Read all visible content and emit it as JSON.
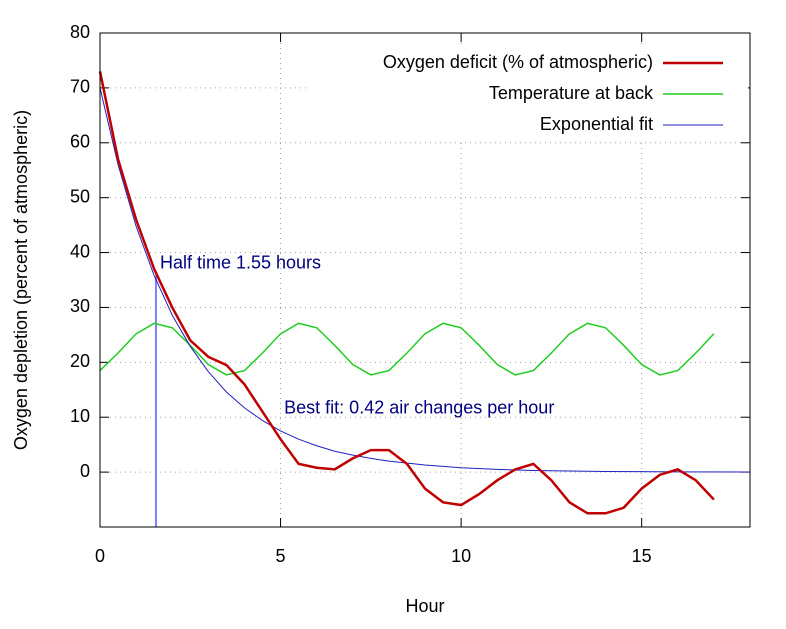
{
  "chart_data": {
    "type": "line",
    "xlabel": "Hour",
    "ylabel": "Oxygen depletion (percent of atmospheric)",
    "xlim": [
      0,
      18
    ],
    "ylim": [
      -10,
      80
    ],
    "xticks": [
      0,
      5,
      10,
      15
    ],
    "yticks": [
      0,
      10,
      20,
      30,
      40,
      50,
      60,
      70,
      80
    ],
    "grid": true,
    "legend": "top-right",
    "series": [
      {
        "name": "Oxygen deficit (% of atmospheric)",
        "color": "#c00000",
        "width": 2.5,
        "x": [
          0,
          0.5,
          1,
          1.5,
          2,
          2.5,
          3,
          3.5,
          4,
          4.5,
          5,
          5.5,
          6,
          6.5,
          7,
          7.5,
          8,
          8.5,
          9,
          9.5,
          10,
          10.5,
          11,
          11.5,
          12,
          12.5,
          13,
          13.5,
          14,
          14.5,
          15,
          15.5,
          16,
          16.5,
          17
        ],
        "values": [
          73,
          57,
          46,
          37,
          30,
          24,
          21,
          19.5,
          16,
          11,
          6,
          1.5,
          0.8,
          0.5,
          2.5,
          4,
          4,
          1.5,
          -3,
          -5.5,
          -6,
          -4,
          -1.5,
          0.5,
          1.5,
          -1.5,
          -5.5,
          -7.5,
          -7.5,
          -6.5,
          -3,
          -0.5,
          0.5,
          -1.5,
          -5
        ]
      },
      {
        "name": "Temperature at back",
        "color": "#22cc22",
        "width": 1.5,
        "x": [
          0,
          0.5,
          1,
          1.5,
          2,
          2.5,
          3,
          3.5,
          4,
          4.5,
          5,
          5.5,
          6,
          6.5,
          7,
          7.5,
          8,
          8.5,
          9,
          9.5,
          10,
          10.5,
          11,
          11.5,
          12,
          12.5,
          13,
          13.5,
          14,
          14.5,
          15,
          15.5,
          16,
          16.5,
          17
        ],
        "values": [
          18.5,
          21.7,
          25.2,
          27.1,
          26.3,
          23.1,
          19.6,
          17.7,
          18.5,
          21.7,
          25.2,
          27.1,
          26.3,
          23.1,
          19.6,
          17.7,
          18.5,
          21.7,
          25.2,
          27.1,
          26.3,
          23.1,
          19.6,
          17.7,
          18.5,
          21.7,
          25.2,
          27.1,
          26.3,
          23.1,
          19.6,
          17.7,
          18.5,
          21.7,
          25.2
        ]
      },
      {
        "name": "Exponential fit",
        "color": "#2020c0",
        "width": 1,
        "x": [
          0,
          0.5,
          1,
          1.5,
          2,
          2.5,
          3,
          3.5,
          4,
          4.5,
          5,
          5.5,
          6,
          6.5,
          7,
          7.5,
          8,
          9,
          10,
          11,
          12,
          14,
          16,
          18
        ],
        "values": [
          70,
          56,
          44.8,
          35.8,
          28.6,
          22.9,
          18.3,
          14.6,
          11.7,
          9.4,
          7.5,
          6,
          4.8,
          3.8,
          3.1,
          2.5,
          2,
          1.3,
          0.8,
          0.5,
          0.3,
          0.1,
          0.05,
          0.02
        ]
      }
    ],
    "marker_line": {
      "x": 1.55,
      "y": 35.8,
      "color": "#8080ff"
    },
    "annotations": [
      {
        "text": "Half time 1.55 hours",
        "color": "#000080"
      },
      {
        "text": "Best fit: 0.42 air changes per hour",
        "color": "#000080"
      }
    ]
  }
}
